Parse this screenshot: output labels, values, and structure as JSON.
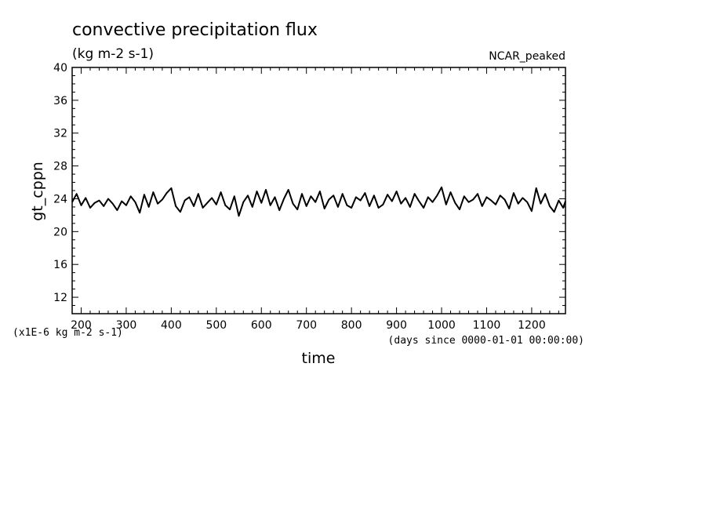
{
  "chart_data": {
    "type": "line",
    "title": "convective precipitation flux",
    "subtitle": "(kg m-2 s-1)",
    "annotation_right": "NCAR_peaked",
    "xlabel": "time",
    "x_units": "(days since 0000-01-01 00:00:00)",
    "ylabel": "gt_cppn",
    "y_scale_note": "(x1E-6 kg m-2 s-1)",
    "xlim": [
      180,
      1275
    ],
    "ylim": [
      10,
      40
    ],
    "x_ticks": [
      200,
      300,
      400,
      500,
      600,
      700,
      800,
      900,
      1000,
      1100,
      1200
    ],
    "y_ticks": [
      12,
      16,
      20,
      24,
      28,
      32,
      36,
      40
    ],
    "grid": false,
    "line_color": "#000000",
    "series": [
      {
        "x": [
          180,
          190,
          200,
          210,
          220,
          230,
          240,
          250,
          260,
          270,
          280,
          290,
          300,
          310,
          320,
          330,
          340,
          350,
          360,
          370,
          380,
          390,
          400,
          410,
          420,
          430,
          440,
          450,
          460,
          470,
          480,
          490,
          500,
          510,
          520,
          530,
          540,
          550,
          560,
          570,
          580,
          590,
          600,
          610,
          620,
          630,
          640,
          650,
          660,
          670,
          680,
          690,
          700,
          710,
          720,
          730,
          740,
          750,
          760,
          770,
          780,
          790,
          800,
          810,
          820,
          830,
          840,
          850,
          860,
          870,
          880,
          890,
          900,
          910,
          920,
          930,
          940,
          950,
          960,
          970,
          980,
          990,
          1000,
          1010,
          1020,
          1030,
          1040,
          1050,
          1060,
          1070,
          1080,
          1090,
          1100,
          1110,
          1120,
          1130,
          1140,
          1150,
          1160,
          1170,
          1180,
          1190,
          1200,
          1210,
          1220,
          1230,
          1240,
          1250,
          1260,
          1270,
          1275
        ],
        "values": [
          23.6,
          24.6,
          23.2,
          24.1,
          22.9,
          23.5,
          23.8,
          23.1,
          24.0,
          23.4,
          22.6,
          23.7,
          23.2,
          24.3,
          23.6,
          22.3,
          24.5,
          23.0,
          24.8,
          23.4,
          23.9,
          24.7,
          25.3,
          23.1,
          22.4,
          23.8,
          24.2,
          23.1,
          24.6,
          22.9,
          23.5,
          24.1,
          23.3,
          24.8,
          23.2,
          22.7,
          24.3,
          21.9,
          23.6,
          24.4,
          23.0,
          24.9,
          23.5,
          25.1,
          23.2,
          24.2,
          22.6,
          24.0,
          25.1,
          23.4,
          22.7,
          24.6,
          23.1,
          24.3,
          23.6,
          24.9,
          22.8,
          23.9,
          24.4,
          23.0,
          24.6,
          23.2,
          22.9,
          24.2,
          23.8,
          24.7,
          23.1,
          24.4,
          22.9,
          23.3,
          24.5,
          23.7,
          24.9,
          23.4,
          24.1,
          23.0,
          24.6,
          23.7,
          22.9,
          24.2,
          23.6,
          24.4,
          25.4,
          23.3,
          24.8,
          23.5,
          22.7,
          24.3,
          23.6,
          23.9,
          24.6,
          23.1,
          24.2,
          23.8,
          23.3,
          24.4,
          23.9,
          22.8,
          24.7,
          23.4,
          24.1,
          23.6,
          22.5,
          25.3,
          23.4,
          24.6,
          23.1,
          22.4,
          23.8,
          22.9,
          23.7
        ]
      }
    ]
  }
}
